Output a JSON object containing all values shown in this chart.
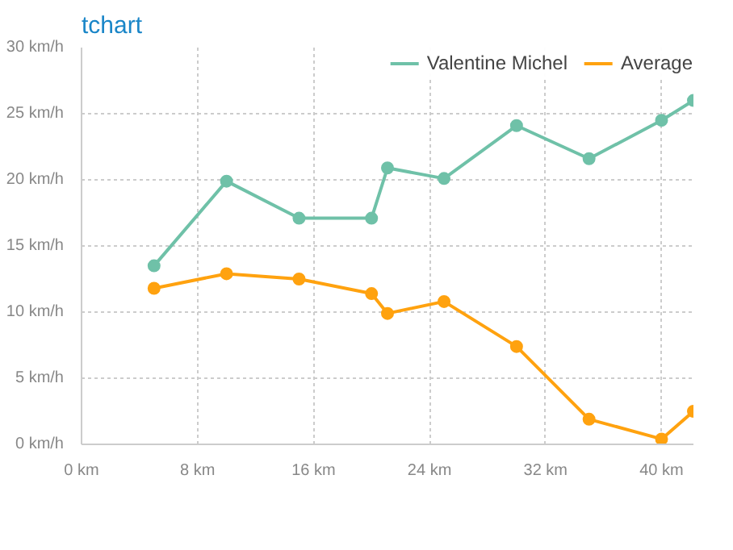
{
  "chart_data": {
    "type": "line",
    "title": "tchart",
    "x": [
      5,
      10,
      15,
      20,
      21.1,
      25,
      30,
      35,
      40,
      42.2
    ],
    "series": [
      {
        "name": "Valentine Michel",
        "color": "#6fc1a8",
        "values": [
          13.5,
          19.9,
          17.1,
          17.1,
          20.9,
          20.1,
          24.1,
          21.6,
          24.5,
          26
        ]
      },
      {
        "name": "Average",
        "color": "#ffa20f",
        "values": [
          11.8,
          12.9,
          12.5,
          11.4,
          9.9,
          10.8,
          7.4,
          1.9,
          0.4,
          2.5
        ]
      }
    ],
    "xlim": [
      0,
      42.2
    ],
    "ylim": [
      0,
      30
    ],
    "xticks": [
      {
        "value": 0,
        "label": "0 km"
      },
      {
        "value": 8,
        "label": "8 km"
      },
      {
        "value": 16,
        "label": "16 km"
      },
      {
        "value": 24,
        "label": "24 km"
      },
      {
        "value": 32,
        "label": "32 km"
      },
      {
        "value": 40,
        "label": "40 km"
      }
    ],
    "yticks": [
      {
        "value": 0,
        "label": "0 km/h"
      },
      {
        "value": 5,
        "label": "5 km/h"
      },
      {
        "value": 10,
        "label": "10 km/h"
      },
      {
        "value": 15,
        "label": "15 km/h"
      },
      {
        "value": 20,
        "label": "20 km/h"
      },
      {
        "value": 25,
        "label": "25 km/h"
      },
      {
        "value": 30,
        "label": "30 km/h"
      }
    ],
    "grid": true,
    "legend": "top right",
    "marker": "circle",
    "line_style": "solid"
  }
}
